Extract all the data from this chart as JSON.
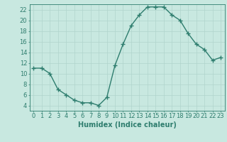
{
  "x": [
    0,
    1,
    2,
    3,
    4,
    5,
    6,
    7,
    8,
    9,
    10,
    11,
    12,
    13,
    14,
    15,
    16,
    17,
    18,
    19,
    20,
    21,
    22,
    23
  ],
  "y": [
    11,
    11,
    10,
    7,
    6,
    5,
    4.5,
    4.5,
    4,
    5.5,
    11.5,
    15.5,
    19,
    21,
    22.5,
    22.5,
    22.5,
    21,
    20,
    17.5,
    15.5,
    14.5,
    12.5,
    13
  ],
  "line_color": "#2e7d6e",
  "bg_color": "#c8e8e0",
  "grid_color": "#b0d4cc",
  "xlabel": "Humidex (Indice chaleur)",
  "xlim": [
    -0.5,
    23.5
  ],
  "ylim": [
    3,
    23
  ],
  "yticks": [
    4,
    6,
    8,
    10,
    12,
    14,
    16,
    18,
    20,
    22
  ],
  "xticks": [
    0,
    1,
    2,
    3,
    4,
    5,
    6,
    7,
    8,
    9,
    10,
    11,
    12,
    13,
    14,
    15,
    16,
    17,
    18,
    19,
    20,
    21,
    22,
    23
  ],
  "axis_fontsize": 7,
  "tick_fontsize": 6,
  "marker": "+",
  "markersize": 4,
  "linewidth": 1.0,
  "markeredgewidth": 1.0
}
